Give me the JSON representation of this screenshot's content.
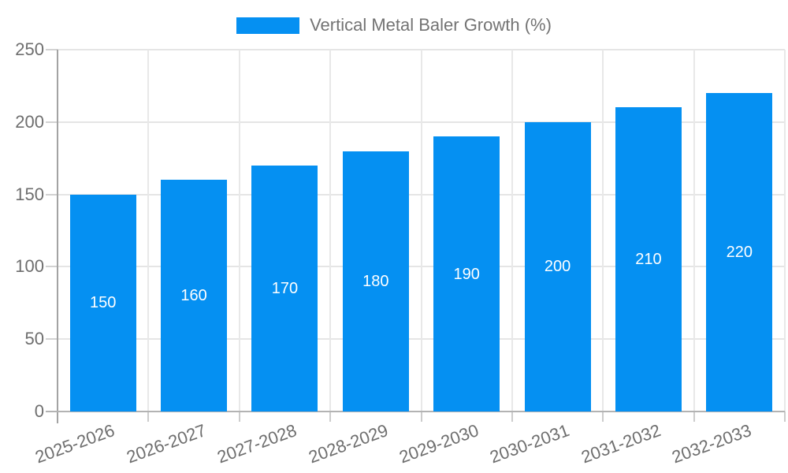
{
  "chart_data": {
    "type": "bar",
    "title": "Vertical Metal Baler Growth (%)",
    "categories": [
      "2025-2026",
      "2026-2027",
      "2027-2028",
      "2028-2029",
      "2029-2030",
      "2030-2031",
      "2031-2032",
      "2032-2033"
    ],
    "values": [
      150,
      160,
      170,
      180,
      190,
      200,
      210,
      220
    ],
    "data_labels": [
      "150",
      "160",
      "170",
      "180",
      "190",
      "200",
      "210",
      "220"
    ],
    "xlabel": "",
    "ylabel": "",
    "ylim": [
      0,
      250
    ],
    "yticks": [
      0,
      50,
      100,
      150,
      200,
      250
    ],
    "grid": true,
    "legend_position": "top-center",
    "data_label_position": "inside-center",
    "x_label_rotation_deg": -20,
    "colors": {
      "bar": "#0590F2",
      "data_label": "#ffffff",
      "axis_label": "#6e6e6e",
      "legend_text": "#737373",
      "gridline": "#e5e5e5",
      "axis_line": "#b3b3b3"
    }
  }
}
